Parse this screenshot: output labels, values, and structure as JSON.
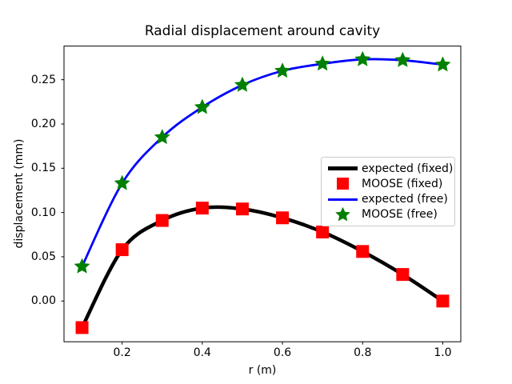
{
  "chart_data": {
    "type": "line",
    "title": "Radial displacement around cavity",
    "xlabel": "r (m)",
    "ylabel": "displacement (mm)",
    "xlim": [
      0.055,
      1.045
    ],
    "ylim": [
      -0.046,
      0.288
    ],
    "grid": false,
    "legend_position": "center right",
    "x_ticks": {
      "values": [
        0.2,
        0.4,
        0.6,
        0.8,
        1.0
      ],
      "labels": [
        "0.2",
        "0.4",
        "0.6",
        "0.8",
        "1.0"
      ]
    },
    "y_ticks": {
      "values": [
        0.0,
        0.05,
        0.1,
        0.15,
        0.2,
        0.25
      ],
      "labels": [
        "0.00",
        "0.05",
        "0.10",
        "0.15",
        "0.20",
        "0.25"
      ]
    },
    "x": [
      0.1,
      0.2,
      0.3,
      0.4,
      0.5,
      0.6,
      0.7,
      0.8,
      0.9,
      1.0
    ],
    "series": [
      {
        "name": "expected (fixed)",
        "kind": "line",
        "color": "#000000",
        "line_width": 4.5,
        "values": [
          -0.03,
          0.058,
          0.091,
          0.105,
          0.104,
          0.094,
          0.078,
          0.056,
          0.03,
          0.0
        ]
      },
      {
        "name": "MOOSE (fixed)",
        "kind": "scatter",
        "marker": "square",
        "color": "#ff0000",
        "marker_size": 16,
        "values": [
          -0.03,
          0.058,
          0.091,
          0.105,
          0.104,
          0.094,
          0.078,
          0.056,
          0.03,
          0.0
        ]
      },
      {
        "name": "expected (free)",
        "kind": "line",
        "color": "#0000ff",
        "line_width": 2.8,
        "values": [
          0.039,
          0.133,
          0.185,
          0.219,
          0.244,
          0.26,
          0.268,
          0.273,
          0.272,
          0.267
        ]
      },
      {
        "name": "MOOSE (free)",
        "kind": "scatter",
        "marker": "star",
        "color": "#008000",
        "marker_size": 21,
        "values": [
          0.039,
          0.133,
          0.185,
          0.219,
          0.244,
          0.26,
          0.268,
          0.273,
          0.272,
          0.267
        ]
      }
    ]
  },
  "colors": {
    "background": "#ffffff",
    "text": "#000000",
    "axes": "#000000",
    "legend_border": "#cccccc"
  }
}
